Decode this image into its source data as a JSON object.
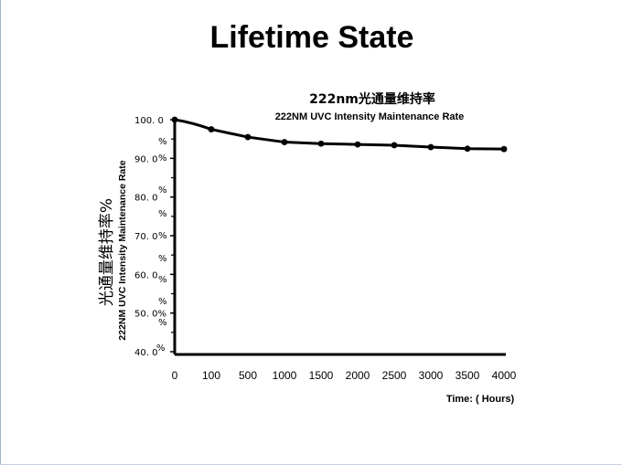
{
  "slide": {
    "title": "Lifetime State"
  },
  "chart_data": {
    "type": "line",
    "title": "222nm光通量维持率",
    "subtitle": "222NM UVC Intensity Maintenance Rate",
    "ylabel": "光通量维持率%",
    "ylabel_secondary": "222NM UVC Intensity Maintenance Rate",
    "xlabel": "Time: ( Hours)",
    "x_tick_labels": [
      "0",
      "100",
      "500",
      "1000",
      "1500",
      "2000",
      "2500",
      "3000",
      "3500",
      "4000"
    ],
    "y_tick_labels": [
      {
        "value": 100,
        "label": "100. 0"
      },
      {
        "value": 90,
        "label": "90. 0"
      },
      {
        "value": 80,
        "label": "80. 0"
      },
      {
        "value": 70,
        "label": "70. 0"
      },
      {
        "value": 60,
        "label": "60. 0"
      },
      {
        "value": 50,
        "label": "50. 0%"
      },
      {
        "value": 40,
        "label": "40. 0"
      }
    ],
    "percent_marks": [
      "%",
      "%",
      "%",
      "%",
      "%",
      "%",
      "%",
      "%",
      "%",
      "%",
      "%",
      "%"
    ],
    "ylim": [
      40,
      100
    ],
    "series": [
      {
        "x": [
          "0",
          "100",
          "500",
          "1000",
          "1500",
          "2000",
          "2500",
          "3000",
          "3500",
          "4000"
        ],
        "values": [
          100.0,
          97.5,
          95.5,
          94.2,
          93.8,
          93.6,
          93.4,
          92.9,
          92.5,
          92.4
        ]
      }
    ],
    "grid": false,
    "line_color": "#000000"
  }
}
